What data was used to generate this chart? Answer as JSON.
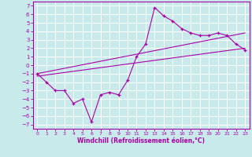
{
  "xlabel": "Windchill (Refroidissement éolien,°C)",
  "background_color": "#c8eaea",
  "grid_color": "#ffffff",
  "line_color": "#aa00aa",
  "xlim": [
    -0.5,
    23.5
  ],
  "ylim": [
    -7.5,
    7.5
  ],
  "xticks": [
    0,
    1,
    2,
    3,
    4,
    5,
    6,
    7,
    8,
    9,
    10,
    11,
    12,
    13,
    14,
    15,
    16,
    17,
    18,
    19,
    20,
    21,
    22,
    23
  ],
  "yticks": [
    -7,
    -6,
    -5,
    -4,
    -3,
    -2,
    -1,
    0,
    1,
    2,
    3,
    4,
    5,
    6,
    7
  ],
  "main_x": [
    0,
    1,
    2,
    3,
    4,
    5,
    6,
    7,
    8,
    9,
    10,
    11,
    12,
    13,
    14,
    15,
    16,
    17,
    18,
    19,
    20,
    21,
    22,
    23
  ],
  "main_y": [
    -1.0,
    -2.0,
    -3.0,
    -3.0,
    -4.5,
    -4.0,
    -6.7,
    -3.5,
    -3.2,
    -3.5,
    -1.8,
    1.0,
    2.5,
    6.8,
    5.8,
    5.2,
    4.3,
    3.8,
    3.5,
    3.5,
    3.8,
    3.5,
    2.5,
    1.8
  ],
  "line1_x": [
    0,
    23
  ],
  "line1_y": [
    -1.3,
    2.0
  ],
  "line2_x": [
    0,
    23
  ],
  "line2_y": [
    -1.0,
    3.8
  ]
}
